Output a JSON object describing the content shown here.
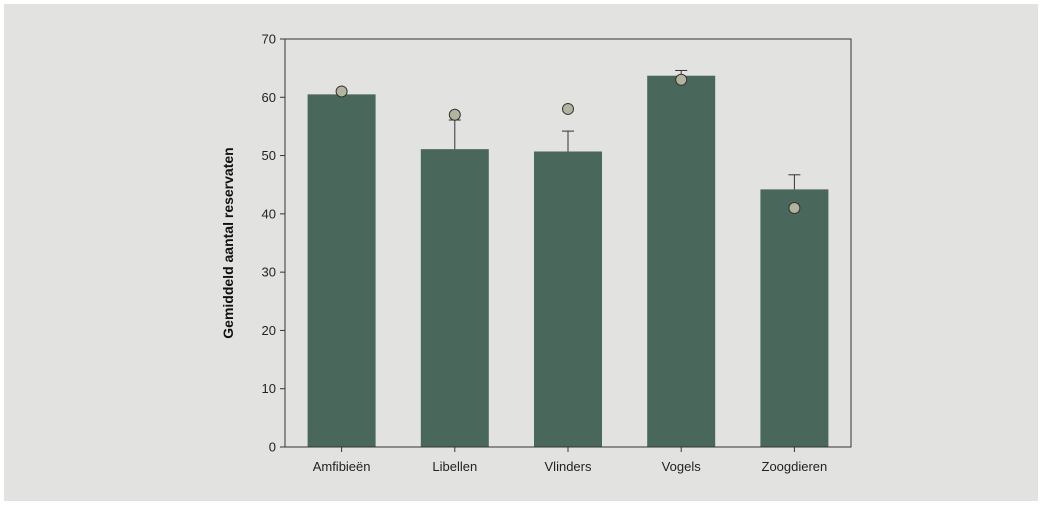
{
  "chart_data": {
    "type": "bar",
    "title": "",
    "xlabel": "",
    "ylabel": "Gemiddeld aantal reservaten",
    "categories": [
      "Amfibieën",
      "Libellen",
      "Vlinders",
      "Vogels",
      "Zoogdieren"
    ],
    "series": [
      {
        "values": [
          60.5,
          51.1,
          50.7,
          63.7,
          44.2
        ]
      }
    ],
    "error_bars_upper": [
      0,
      5.0,
      3.5,
      0.9,
      2.5
    ],
    "markers": [
      61,
      57,
      58,
      63,
      41
    ],
    "ylim": [
      0,
      70
    ],
    "yticks": [
      0,
      10,
      20,
      30,
      40,
      50,
      60,
      70
    ],
    "grid": false,
    "colors": {
      "bar": "#4a675b",
      "marker_fill": "#b3b49d",
      "marker_stroke": "#333333",
      "background": "#e2e3e1"
    }
  }
}
